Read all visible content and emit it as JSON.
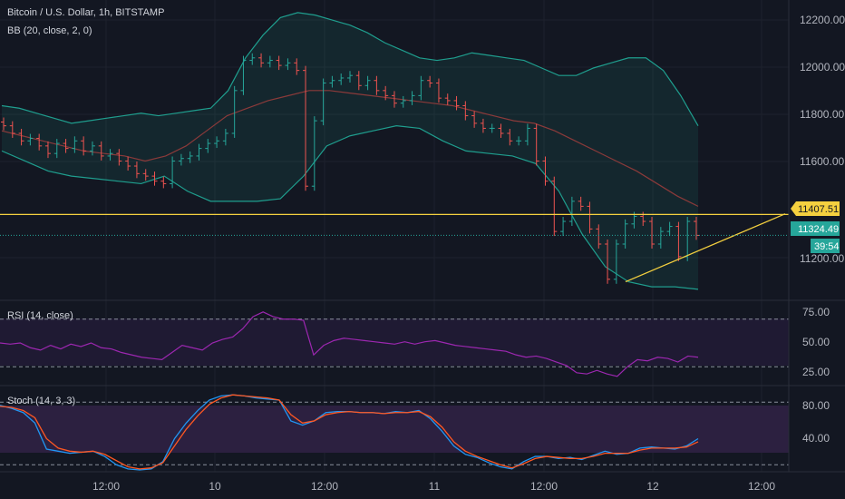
{
  "header": {
    "symbol_title": "Bitcoin / U.S. Dollar, 1h, BITSTAMP",
    "indicator_bb": "BB (20, close, 2, 0)"
  },
  "rsi_panel": {
    "label": "RSI (14, close)"
  },
  "stoch_panel": {
    "label": "Stoch (14, 3, 3)"
  },
  "price_scale": {
    "ticks": [
      "12200.00",
      "12000.00",
      "11800.00",
      "11600.00",
      "11200.00"
    ],
    "horizontal_line_label": "11407.51",
    "last_price_label": "11324.49",
    "countdown_label": "39:54"
  },
  "rsi_scale": {
    "ticks": [
      "75.00",
      "50.00",
      "25.00"
    ]
  },
  "stoch_scale": {
    "ticks": [
      "80.00",
      "40.00"
    ]
  },
  "time_axis": {
    "labels": [
      "12:00",
      "10",
      "12:00",
      "11",
      "12:00",
      "12",
      "12:00"
    ]
  },
  "colors": {
    "background": "#131722",
    "up_candle": "#26a69a",
    "down_candle": "#ef5350",
    "bb_band": "#1f9e8e",
    "bb_basis": "#8b3a3a",
    "horizontal_line": "#f4d03f",
    "trendline": "#f4d03f",
    "last_price": "#26a69a",
    "rsi_line": "#9c27b0",
    "stoch_k": "#2196f3",
    "stoch_d": "#ff5722"
  },
  "chart_data": [
    {
      "type": "candlestick",
      "title": "Bitcoin / U.S. Dollar, 1h, BITSTAMP",
      "ylim": [
        11070,
        12260
      ],
      "x": {
        "label_positions": [
          "12:00",
          "10",
          "12:00",
          "11",
          "12:00",
          "12",
          "12:00"
        ]
      },
      "close": [
        11760,
        11730,
        11700,
        11710,
        11680,
        11650,
        11690,
        11670,
        11700,
        11660,
        11680,
        11640,
        11650,
        11620,
        11600,
        11570,
        11560,
        11540,
        11530,
        11620,
        11630,
        11640,
        11670,
        11690,
        11700,
        11730,
        11900,
        12020,
        12030,
        12010,
        12020,
        12000,
        12010,
        11980,
        11520,
        11780,
        11930,
        11940,
        11950,
        11960,
        11920,
        11940,
        11900,
        11880,
        11850,
        11860,
        11880,
        11940,
        11930,
        11870,
        11860,
        11840,
        11800,
        11770,
        11750,
        11750,
        11730,
        11700,
        11700,
        11750,
        11620,
        11540,
        11340,
        11380,
        11460,
        11440,
        11350,
        11290,
        11150,
        11290,
        11370,
        11400,
        11380,
        11290,
        11340,
        11360,
        11240,
        11380,
        11324.49
      ],
      "bb_upper": [
        11840,
        11830,
        11810,
        11790,
        11770,
        11780,
        11790,
        11800,
        11810,
        11800,
        11810,
        11820,
        11830,
        11900,
        12030,
        12120,
        12190,
        12210,
        12200,
        12180,
        12160,
        12130,
        12090,
        12060,
        12030,
        12020,
        12030,
        12050,
        12040,
        12030,
        12020,
        11990,
        11960,
        11960,
        11990,
        12010,
        12030,
        12030,
        11980,
        11880,
        11760
      ],
      "bb_basis": [
        11740,
        11720,
        11700,
        11680,
        11660,
        11650,
        11640,
        11620,
        11640,
        11680,
        11740,
        11800,
        11830,
        11860,
        11880,
        11900,
        11900,
        11890,
        11880,
        11870,
        11860,
        11850,
        11840,
        11820,
        11800,
        11780,
        11770,
        11740,
        11700,
        11660,
        11620,
        11580,
        11530,
        11480,
        11440
      ],
      "bb_lower": [
        11660,
        11620,
        11580,
        11560,
        11550,
        11540,
        11530,
        11560,
        11500,
        11460,
        11460,
        11460,
        11470,
        11560,
        11680,
        11720,
        11740,
        11760,
        11750,
        11700,
        11660,
        11650,
        11640,
        11610,
        11500,
        11330,
        11200,
        11140,
        11120,
        11120,
        11110
      ],
      "horizontal_line": 11407.51,
      "trendline": {
        "from": 11140,
        "to": 11410
      }
    },
    {
      "type": "line",
      "title": "RSI (14, close)",
      "ylim": [
        15,
        85
      ],
      "levels": [
        70,
        30
      ],
      "values": [
        50,
        49,
        50,
        46,
        44,
        48,
        45,
        49,
        47,
        50,
        46,
        45,
        42,
        40,
        38,
        37,
        36,
        42,
        48,
        46,
        44,
        50,
        53,
        55,
        62,
        72,
        76,
        72,
        70,
        70,
        69,
        40,
        48,
        52,
        54,
        53,
        52,
        51,
        50,
        49,
        51,
        49,
        51,
        52,
        50,
        48,
        47,
        46,
        45,
        44,
        43,
        40,
        38,
        39,
        37,
        34,
        31,
        25,
        24,
        27,
        24,
        22,
        30,
        36,
        35,
        38,
        37,
        34,
        39,
        38
      ]
    },
    {
      "type": "line",
      "title": "Stoch (14, 3, 3)",
      "ylim": [
        15,
        95
      ],
      "levels": [
        80,
        20
      ],
      "series": [
        {
          "values": [
            77,
            74,
            70,
            60,
            35,
            33,
            31,
            32,
            33,
            28,
            20,
            16,
            15,
            16,
            23,
            45,
            60,
            72,
            82,
            86,
            87,
            86,
            84,
            83,
            82,
            62,
            58,
            62,
            70,
            71,
            71,
            70,
            70,
            69,
            71,
            70,
            72,
            64,
            52,
            38,
            30,
            27,
            22,
            18,
            16,
            23,
            28,
            28,
            26,
            27,
            25,
            29,
            33,
            30,
            31,
            36,
            37,
            36,
            35,
            38,
            45
          ]
        },
        {
          "values": [
            76,
            75,
            72,
            65,
            45,
            36,
            33,
            32,
            33,
            30,
            24,
            18,
            16,
            17,
            22,
            38,
            54,
            67,
            78,
            84,
            87,
            86,
            85,
            84,
            82,
            68,
            60,
            62,
            68,
            70,
            71,
            70,
            70,
            69,
            70,
            70,
            71,
            66,
            56,
            42,
            33,
            28,
            24,
            20,
            17,
            21,
            26,
            28,
            27,
            26,
            26,
            28,
            31,
            31,
            31,
            34,
            36,
            36,
            36,
            37,
            42
          ]
        }
      ]
    }
  ]
}
